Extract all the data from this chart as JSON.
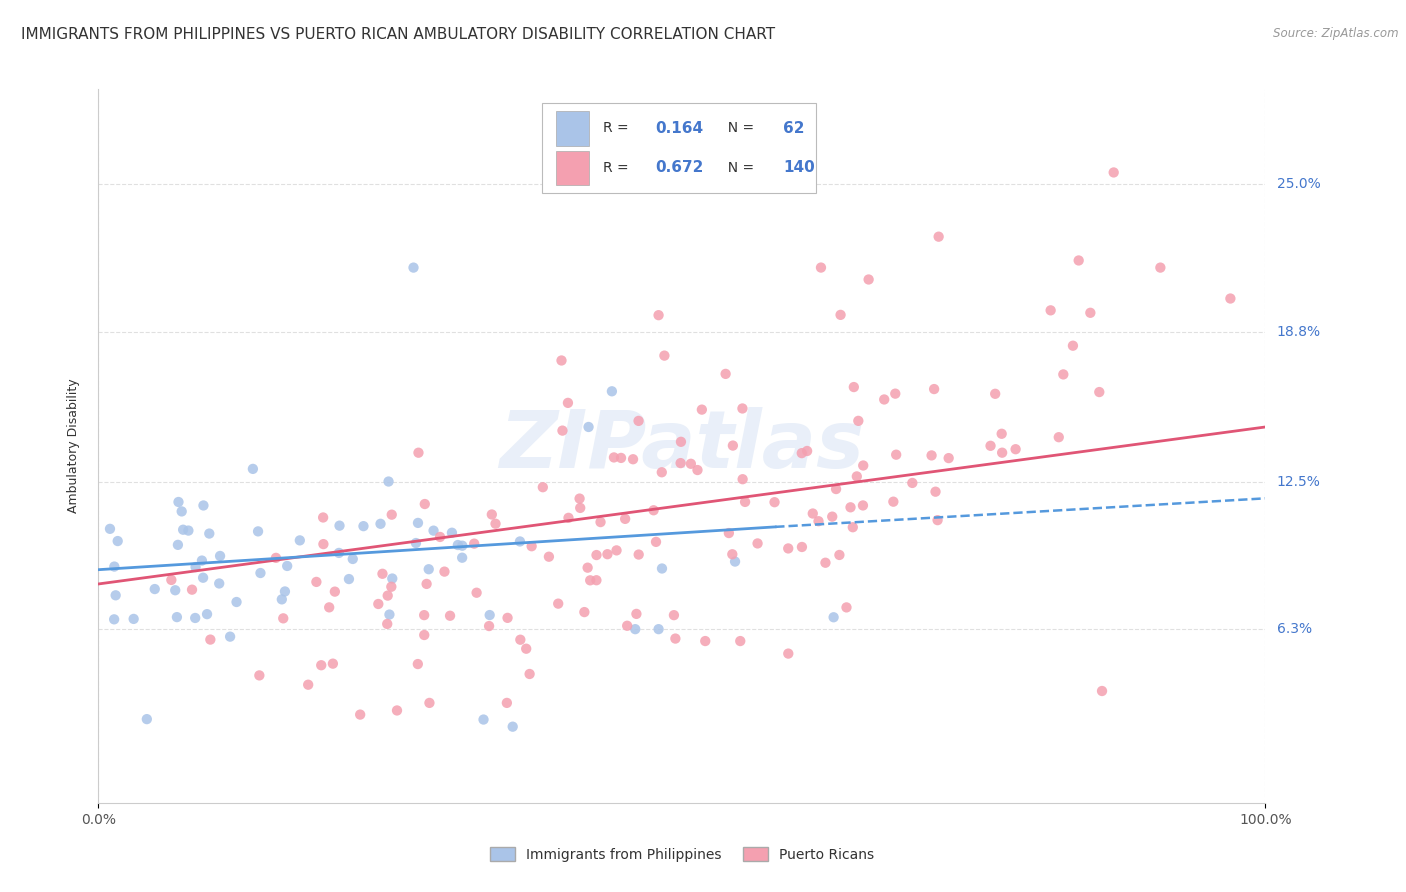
{
  "title": "IMMIGRANTS FROM PHILIPPINES VS PUERTO RICAN AMBULATORY DISABILITY CORRELATION CHART",
  "source": "Source: ZipAtlas.com",
  "ylabel": "Ambulatory Disability",
  "xlim": [
    0,
    1
  ],
  "ylim": [
    -0.01,
    0.29
  ],
  "yticks": [
    0.063,
    0.125,
    0.188,
    0.25
  ],
  "ytick_labels": [
    "6.3%",
    "12.5%",
    "18.8%",
    "25.0%"
  ],
  "blue_R": 0.164,
  "blue_N": 62,
  "pink_R": 0.672,
  "pink_N": 140,
  "blue_color": "#aac4e8",
  "pink_color": "#f4a0b0",
  "blue_line_color": "#5599dd",
  "pink_line_color": "#e05575",
  "watermark": "ZIPatlas",
  "legend_label_blue": "Immigrants from Philippines",
  "legend_label_pink": "Puerto Ricans",
  "title_fontsize": 11,
  "axis_label_fontsize": 9,
  "tick_fontsize": 10,
  "background_color": "#ffffff",
  "grid_color": "#cccccc",
  "blue_line_start_x": 0.0,
  "blue_line_start_y": 0.088,
  "blue_line_end_x": 0.58,
  "blue_line_end_y": 0.106,
  "blue_line_dash_start_x": 0.58,
  "blue_line_dash_start_y": 0.106,
  "blue_line_dash_end_x": 1.0,
  "blue_line_dash_end_y": 0.118,
  "pink_line_start_x": 0.0,
  "pink_line_start_y": 0.082,
  "pink_line_end_x": 1.0,
  "pink_line_end_y": 0.148
}
